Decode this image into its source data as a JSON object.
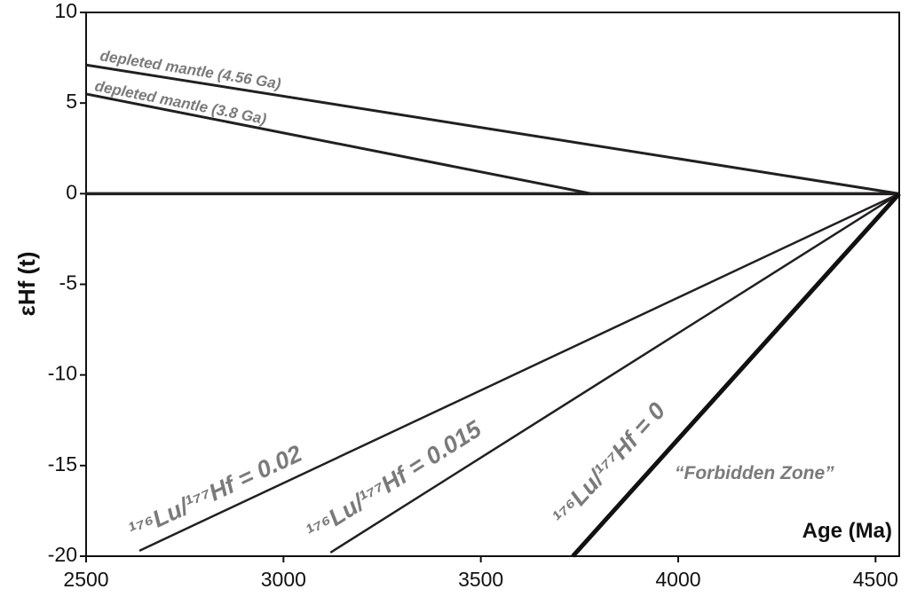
{
  "chart_data": {
    "type": "line",
    "xlabel": "Age (Ma)",
    "ylabel": "εHf (t)",
    "xlim": [
      2500,
      4560
    ],
    "ylim": [
      -20,
      10
    ],
    "xticks": [
      2500,
      3000,
      3500,
      4000,
      4500
    ],
    "yticks": [
      10,
      5,
      0,
      -5,
      -10,
      -15,
      -20
    ],
    "series": [
      {
        "name": "depleted mantle (4.56 Ga)",
        "color": "#231f20",
        "line_width": 3,
        "x": [
          2500,
          4560
        ],
        "values": [
          7.1,
          0
        ]
      },
      {
        "name": "depleted mantle (3.8 Ga)",
        "color": "#231f20",
        "line_width": 3,
        "x": [
          2500,
          3780
        ],
        "values": [
          5.5,
          0
        ]
      },
      {
        "color": "#231f20",
        "line_width": 3.5,
        "x": [
          2500,
          4560
        ],
        "values": [
          0,
          0
        ]
      },
      {
        "name": "¹⁷⁶Lu/¹⁷⁷Hf = 0.02",
        "color": "#231f20",
        "line_width": 2.5,
        "x": [
          2635,
          4560
        ],
        "values": [
          -19.7,
          0
        ]
      },
      {
        "name": "¹⁷⁶Lu/¹⁷⁷Hf = 0.015",
        "color": "#231f20",
        "line_width": 2.5,
        "x": [
          3119,
          4560
        ],
        "values": [
          -19.8,
          0
        ]
      },
      {
        "name": "¹⁷⁶Lu/¹⁷⁷Hf = 0",
        "color": "#111111",
        "line_width": 5,
        "x": [
          3733,
          4560
        ],
        "values": [
          -20,
          0
        ]
      }
    ],
    "annotations": [
      "“Forbidden Zone”"
    ]
  }
}
